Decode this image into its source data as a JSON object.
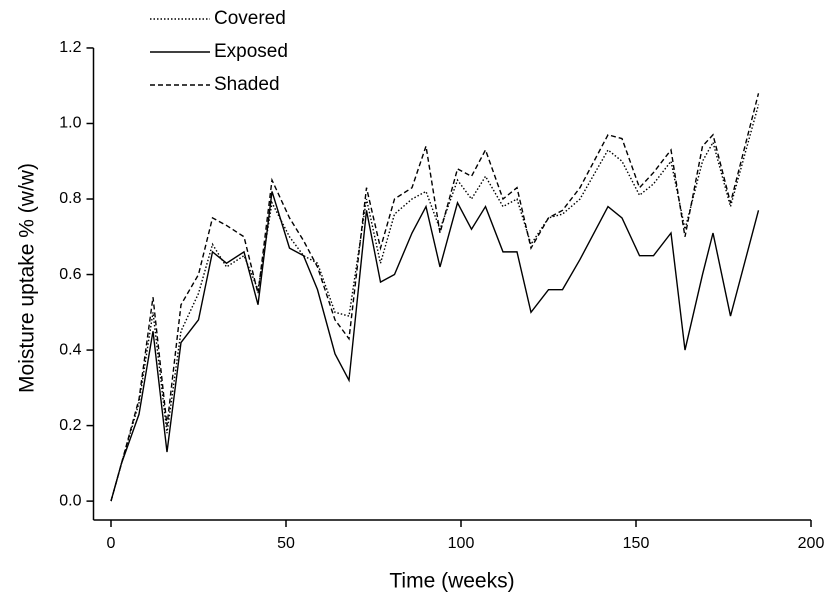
{
  "chart_data": {
    "type": "line",
    "x_label": "Time (weeks)",
    "y_label": "Moisture uptake % (w/w)",
    "x": [
      0,
      3,
      8,
      12,
      16,
      20,
      25,
      29,
      33,
      38,
      42,
      46,
      51,
      55,
      59,
      64,
      68,
      73,
      77,
      81,
      86,
      90,
      94,
      99,
      103,
      107,
      112,
      116,
      120,
      125,
      129,
      134,
      142,
      146,
      151,
      155,
      160,
      164,
      169,
      172,
      177,
      185
    ],
    "series": [
      {
        "name": "Covered",
        "color": "#000000",
        "linestyle": "dotted",
        "values": [
          0,
          0.1,
          0.26,
          0.5,
          0.18,
          0.45,
          0.55,
          0.68,
          0.62,
          0.65,
          0.56,
          0.79,
          0.7,
          0.65,
          0.63,
          0.5,
          0.49,
          0.8,
          0.63,
          0.76,
          0.8,
          0.82,
          0.72,
          0.85,
          0.8,
          0.86,
          0.78,
          0.8,
          0.68,
          0.75,
          0.76,
          0.8,
          0.93,
          0.9,
          0.81,
          0.84,
          0.9,
          0.72,
          0.9,
          0.95,
          0.78,
          1.05
        ]
      },
      {
        "name": "Exposed",
        "color": "#000000",
        "linestyle": "solid",
        "values": [
          0,
          0.1,
          0.23,
          0.45,
          0.13,
          0.42,
          0.48,
          0.66,
          0.63,
          0.66,
          0.52,
          0.82,
          0.67,
          0.65,
          0.56,
          0.39,
          0.32,
          0.77,
          0.58,
          0.6,
          0.71,
          0.78,
          0.62,
          0.79,
          0.72,
          0.78,
          0.66,
          0.66,
          0.5,
          0.56,
          0.56,
          0.64,
          0.78,
          0.75,
          0.65,
          0.65,
          0.71,
          0.4,
          0.6,
          0.71,
          0.49,
          0.77
        ]
      },
      {
        "name": "Shaded",
        "color": "#000000",
        "linestyle": "dashed",
        "values": [
          0,
          0.1,
          0.27,
          0.54,
          0.2,
          0.52,
          0.6,
          0.75,
          0.73,
          0.7,
          0.55,
          0.85,
          0.75,
          0.69,
          0.62,
          0.48,
          0.43,
          0.83,
          0.67,
          0.8,
          0.83,
          0.94,
          0.71,
          0.88,
          0.86,
          0.93,
          0.8,
          0.83,
          0.67,
          0.75,
          0.77,
          0.83,
          0.97,
          0.96,
          0.83,
          0.87,
          0.93,
          0.7,
          0.94,
          0.97,
          0.79,
          1.08
        ]
      }
    ],
    "xlim": [
      -5,
      200
    ],
    "xticks": [
      0,
      50,
      100,
      150,
      200
    ],
    "ylim": [
      -0.05,
      1.2
    ],
    "yticks": [
      {
        "value": 0,
        "label": "0.0"
      },
      0.2,
      0.4,
      0.6,
      0.8,
      {
        "value": 1,
        "label": "1.0"
      },
      1.2
    ],
    "grid": false,
    "legend": "upper left"
  }
}
